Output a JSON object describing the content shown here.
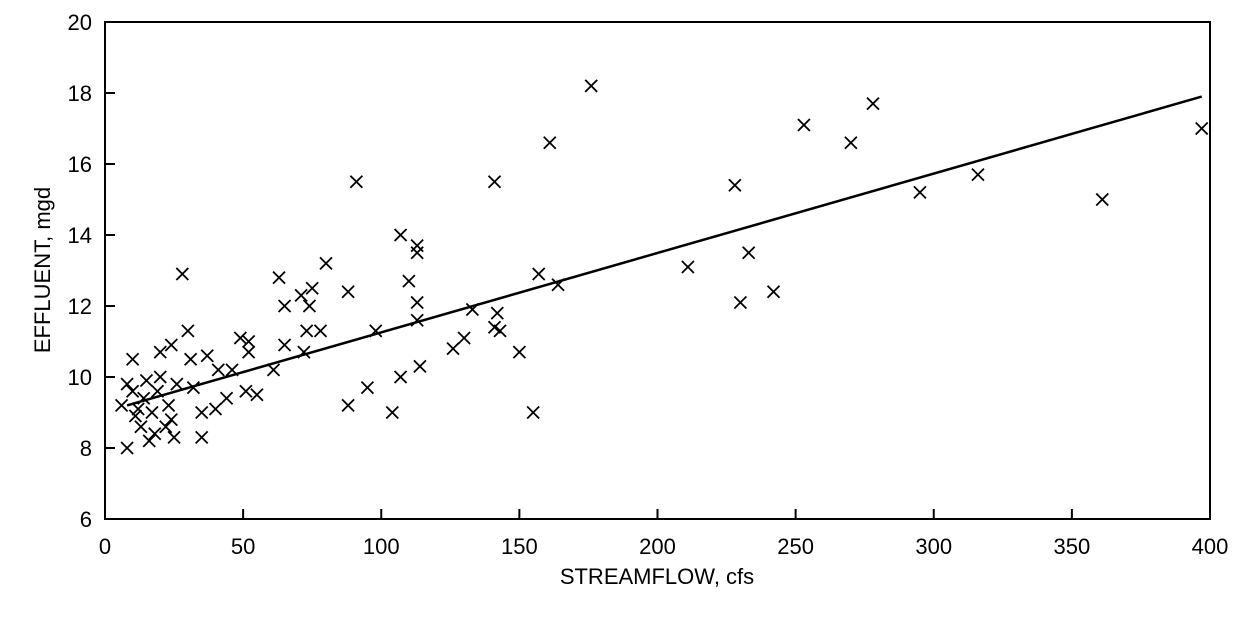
{
  "chart_data": {
    "type": "scatter",
    "title": "",
    "xlabel": "STREAMFLOW, cfs",
    "ylabel": "EFFLUENT, mgd",
    "xlim": [
      0,
      400
    ],
    "ylim": [
      6,
      20
    ],
    "xticks": [
      0,
      50,
      100,
      150,
      200,
      250,
      300,
      350,
      400
    ],
    "yticks": [
      6,
      8,
      10,
      12,
      14,
      16,
      18,
      20
    ],
    "grid": false,
    "marker": "x",
    "colors": {
      "marker": "#000000",
      "line": "#000000",
      "frame": "#000000"
    },
    "series": [
      {
        "points": [
          [
            6,
            9.2
          ],
          [
            8,
            8.0
          ],
          [
            8,
            9.8
          ],
          [
            10,
            10.5
          ],
          [
            10,
            9.6
          ],
          [
            11,
            8.9
          ],
          [
            12,
            9.1
          ],
          [
            13,
            8.6
          ],
          [
            14,
            9.4
          ],
          [
            15,
            9.9
          ],
          [
            16,
            8.2
          ],
          [
            17,
            9.0
          ],
          [
            18,
            8.4
          ],
          [
            19,
            9.6
          ],
          [
            20,
            10.0
          ],
          [
            20,
            10.7
          ],
          [
            22,
            8.6
          ],
          [
            23,
            9.2
          ],
          [
            24,
            8.8
          ],
          [
            24,
            10.9
          ],
          [
            25,
            8.3
          ],
          [
            26,
            9.8
          ],
          [
            28,
            12.9
          ],
          [
            30,
            11.3
          ],
          [
            31,
            10.5
          ],
          [
            32,
            9.7
          ],
          [
            35,
            9.0
          ],
          [
            35,
            8.3
          ],
          [
            37,
            10.6
          ],
          [
            40,
            9.1
          ],
          [
            41,
            10.2
          ],
          [
            44,
            9.4
          ],
          [
            46,
            10.2
          ],
          [
            49,
            11.1
          ],
          [
            51,
            9.6
          ],
          [
            52,
            11.0
          ],
          [
            52,
            10.7
          ],
          [
            55,
            9.5
          ],
          [
            61,
            10.2
          ],
          [
            63,
            12.8
          ],
          [
            65,
            12.0
          ],
          [
            65,
            10.9
          ],
          [
            71,
            12.3
          ],
          [
            72,
            10.7
          ],
          [
            73,
            11.3
          ],
          [
            74,
            12.0
          ],
          [
            75,
            12.5
          ],
          [
            78,
            11.3
          ],
          [
            80,
            13.2
          ],
          [
            88,
            12.4
          ],
          [
            88,
            9.2
          ],
          [
            91,
            15.5
          ],
          [
            95,
            9.7
          ],
          [
            98,
            11.3
          ],
          [
            104,
            9.0
          ],
          [
            107,
            10.0
          ],
          [
            107,
            14.0
          ],
          [
            110,
            12.7
          ],
          [
            113,
            13.7
          ],
          [
            113,
            13.5
          ],
          [
            113,
            12.1
          ],
          [
            113,
            11.6
          ],
          [
            114,
            10.3
          ],
          [
            126,
            10.8
          ],
          [
            130,
            11.1
          ],
          [
            133,
            11.9
          ],
          [
            141,
            15.5
          ],
          [
            141,
            11.4
          ],
          [
            142,
            11.8
          ],
          [
            143,
            11.3
          ],
          [
            150,
            10.7
          ],
          [
            155,
            9.0
          ],
          [
            157,
            12.9
          ],
          [
            161,
            16.6
          ],
          [
            164,
            12.6
          ],
          [
            176,
            18.2
          ],
          [
            211,
            13.1
          ],
          [
            228,
            15.4
          ],
          [
            230,
            12.1
          ],
          [
            233,
            13.5
          ],
          [
            242,
            12.4
          ],
          [
            253,
            17.1
          ],
          [
            270,
            16.6
          ],
          [
            278,
            17.7
          ],
          [
            295,
            15.2
          ],
          [
            316,
            15.7
          ],
          [
            361,
            15.0
          ],
          [
            397,
            17.0
          ]
        ]
      }
    ],
    "fit_line": {
      "x": [
        8,
        397
      ],
      "y": [
        9.2,
        17.9
      ]
    }
  }
}
